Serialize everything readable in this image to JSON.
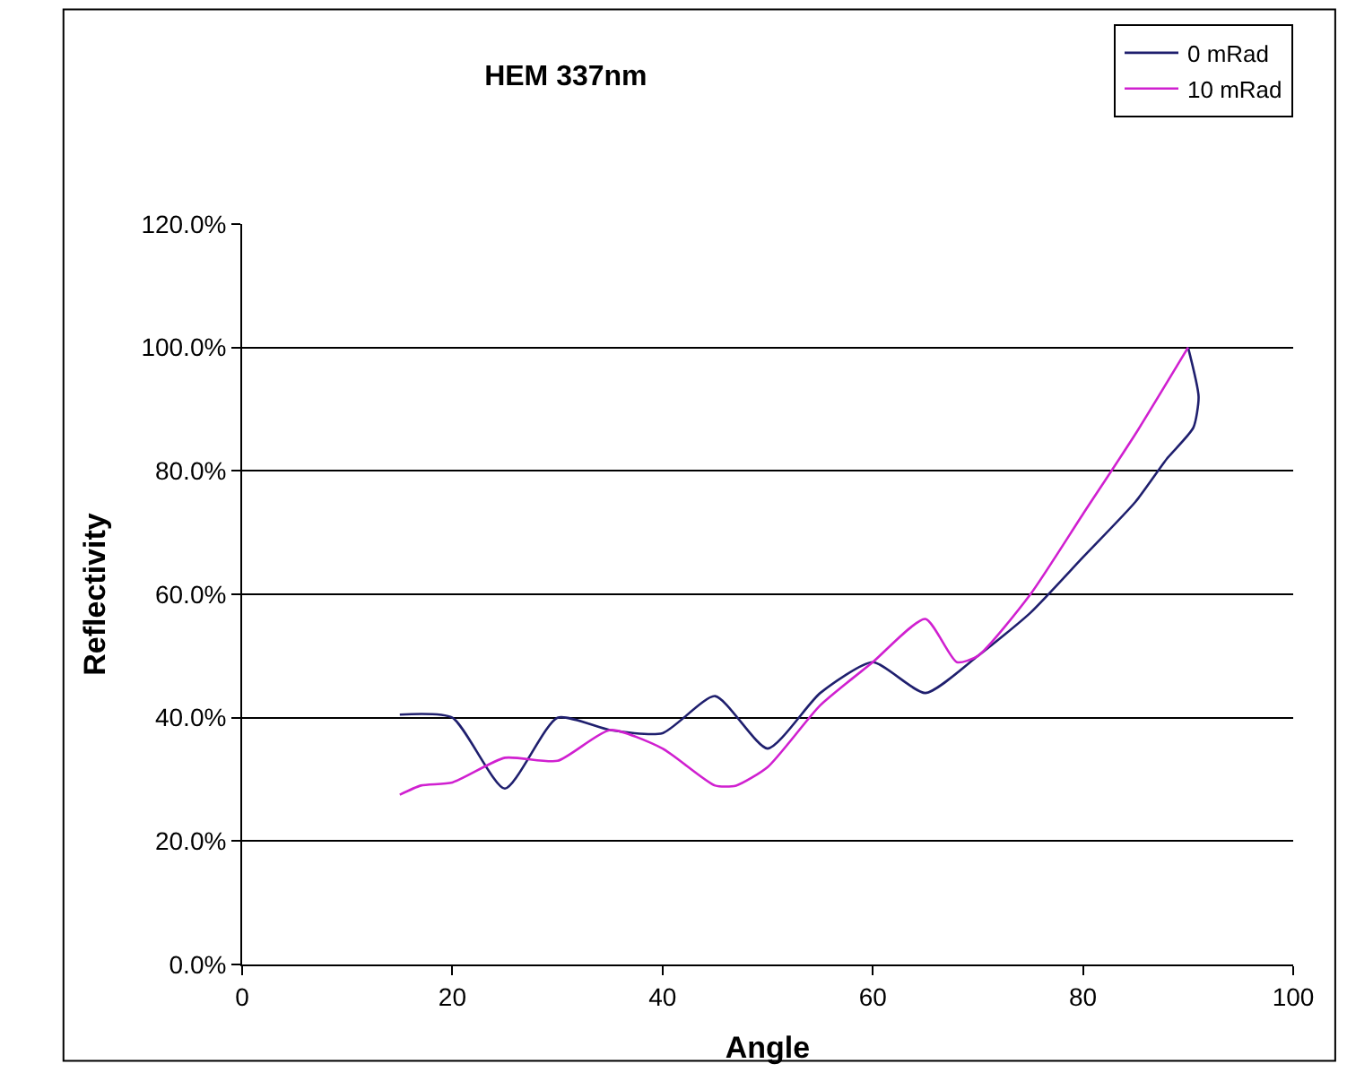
{
  "chart_data": {
    "type": "line",
    "title": "HEM 337nm",
    "xlabel": "Angle",
    "ylabel": "Reflectivity",
    "xlim": [
      0,
      100
    ],
    "xticks": [
      0,
      20,
      40,
      60,
      80,
      100
    ],
    "ylim": [
      0,
      120
    ],
    "yticks": [
      {
        "value": 0,
        "label": "0.0%"
      },
      {
        "value": 20,
        "label": "20.0%"
      },
      {
        "value": 40,
        "label": "40.0%"
      },
      {
        "value": 60,
        "label": "60.0%"
      },
      {
        "value": 80,
        "label": "80.0%"
      },
      {
        "value": 100,
        "label": "100.0%"
      },
      {
        "value": 120,
        "label": "120.0%"
      }
    ],
    "grid": "y",
    "legend": "top right",
    "marker": "none",
    "line_style": "solid",
    "series": [
      {
        "name": "0 mRad",
        "color": "#1f1f6e",
        "x": [
          15,
          20,
          25,
          30,
          35,
          40,
          45,
          50,
          55,
          60,
          65,
          70,
          75,
          80,
          85,
          88,
          90.5,
          91,
          90
        ],
        "values": [
          40.5,
          40,
          28.5,
          40,
          38,
          37.5,
          43.5,
          35,
          44,
          49,
          44,
          50,
          57,
          66,
          75,
          82,
          87,
          92,
          100
        ]
      },
      {
        "name": "10 mRad",
        "color": "#d020d0",
        "x": [
          15,
          17,
          20,
          25,
          30,
          35,
          40,
          45,
          47,
          50,
          55,
          60,
          65,
          68,
          70,
          75,
          80,
          85,
          90
        ],
        "values": [
          27.5,
          29,
          29.5,
          33.5,
          33,
          38,
          35,
          29,
          29,
          32,
          42,
          49,
          56,
          49,
          50,
          60,
          73,
          86,
          100
        ]
      }
    ]
  }
}
